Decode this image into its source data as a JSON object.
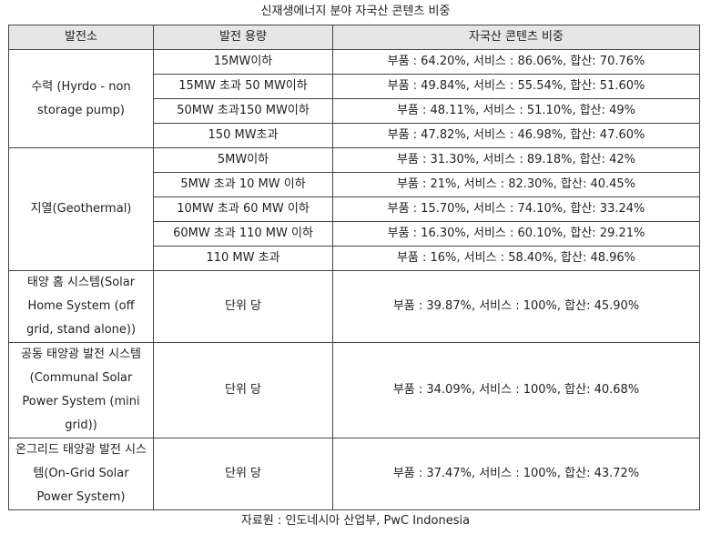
{
  "title": "신재생에너지 분야 자국산 콘텐츠 비중",
  "table": {
    "headers": [
      "발전소",
      "발전 용량",
      "자국산 콘텐츠 비중"
    ],
    "groups": [
      {
        "plant": "수력 (Hyrdo - non storage pump)",
        "rows": [
          {
            "capacity": "15MW이하",
            "share": "부품 : 64.20%,  서비스 : 86.06%, 합산: 70.76%"
          },
          {
            "capacity": "15MW 초과  50 MW이하",
            "share": "부품 : 49.84%, 서비스 : 55.54%,  합산: 51.60%"
          },
          {
            "capacity": "50MW 초과150 MW이하",
            "share": "부품 : 48.11%, 서비스 : 51.10%, 합산: 49%"
          },
          {
            "capacity": "150 MW초과",
            "share": "부품 : 47.82%, 서비스 : 46.98%, 합산: 47.60%"
          }
        ]
      },
      {
        "plant": "지열(Geothermal)",
        "rows": [
          {
            "capacity": "5MW이하",
            "share": "부품 : 31.30%, 서비스 : 89.18%, 합산: 42%"
          },
          {
            "capacity": "5MW 초과 10 MW 이하",
            "share": "부품 : 21%, 서비스 : 82.30%, 합산: 40.45%"
          },
          {
            "capacity": "10MW 초과 60 MW 이하",
            "share": "부품 : 15.70%, 서비스 : 74.10%, 합산: 33.24%"
          },
          {
            "capacity": "60MW 초과 110 MW 이하",
            "share": "부품 : 16.30%, 서비스 : 60.10%, 합산: 29.21%"
          },
          {
            "capacity": "110 MW 초과",
            "share": "부품 : 16%, 서비스 : 58.40%, 합산: 48.96%"
          }
        ]
      },
      {
        "plant": "태양 홈 시스템(Solar Home System (off grid, stand alone))",
        "rows": [
          {
            "capacity": "단위 당",
            "share": "부품 : 39.87%, 서비스 : 100%, 합산: 45.90%"
          }
        ]
      },
      {
        "plant": "공동 태양광 발전 시스템(Communal Solar Power System (mini grid))",
        "rows": [
          {
            "capacity": "단위 당",
            "share": "부품 : 34.09%, 서비스 : 100%, 합산: 40.68%"
          }
        ]
      },
      {
        "plant": "온그리드 태양광 발전 시스템(On-Grid Solar Power System)",
        "rows": [
          {
            "capacity": "단위 당",
            "share": "부품 : 37.47%, 서비스 : 100%, 합산: 43.72%"
          }
        ]
      }
    ]
  },
  "source": "자료원 : 인도네시아 산업부, PwC Indonesia"
}
